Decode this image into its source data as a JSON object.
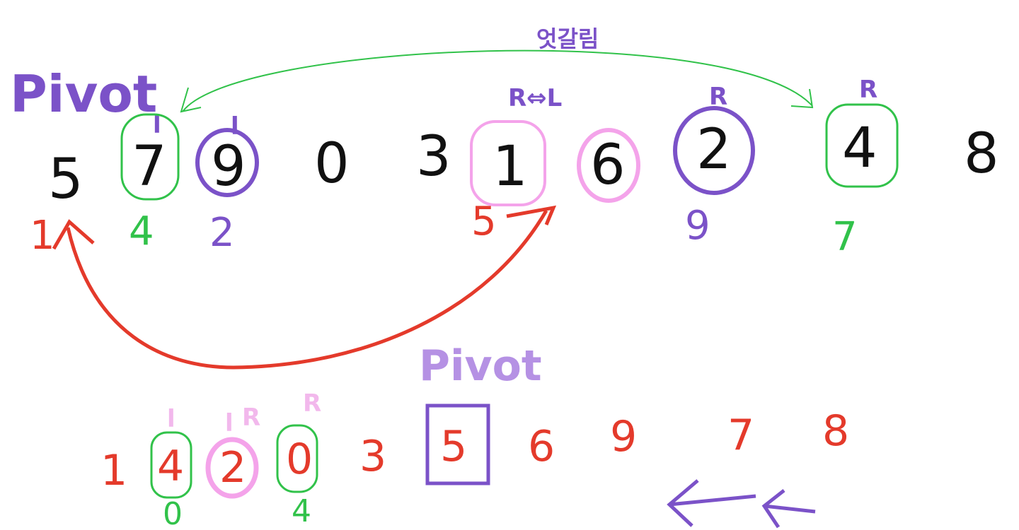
{
  "colors": {
    "black": "#111111",
    "purple": "#7b52c8",
    "green": "#31c24a",
    "pink": "#f4a3ea",
    "red": "#e43a2b",
    "light_pink": "#f2b8ec"
  },
  "top_row": {
    "pivot_label": "Pivot",
    "values": [
      "5",
      "7",
      "9",
      "0",
      "3",
      "1",
      "6",
      "2",
      "4",
      "8"
    ],
    "indices": {
      "i0": "1",
      "i1": "4",
      "i2": "2",
      "i5": "5",
      "i7": "9",
      "i8": "7"
    },
    "markers": {
      "over_7": "l",
      "over_9": "l",
      "over_2": "R",
      "over_4": "R",
      "cross_label": "R⇔L"
    },
    "crossed_note": "엇갈림"
  },
  "bottom_row": {
    "pivot_label": "Pivot",
    "values": [
      "1",
      "4",
      "2",
      "0",
      "3",
      "5",
      "6",
      "9",
      "7",
      "8"
    ],
    "markers": {
      "over_4": "l",
      "over_2_l": "l",
      "over_2_r": "R",
      "over_0": "R"
    },
    "indices": {
      "under_4": "0",
      "under_0": "4"
    }
  }
}
